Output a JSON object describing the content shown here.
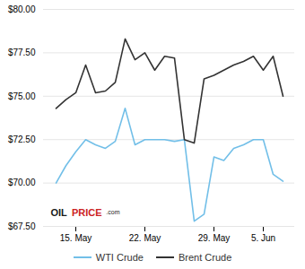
{
  "chart_data": {
    "type": "line",
    "categories": [
      null,
      null,
      "15. May",
      null,
      null,
      null,
      null,
      null,
      null,
      "22. May",
      null,
      null,
      null,
      null,
      null,
      null,
      "29. May",
      null,
      null,
      null,
      null,
      "5. Jun",
      null,
      null
    ],
    "series": [
      {
        "name": "WTI Crude",
        "color": "#72bfe8",
        "values": [
          70.0,
          71.0,
          71.8,
          72.5,
          72.2,
          72.0,
          72.4,
          74.3,
          72.2,
          72.5,
          72.5,
          72.5,
          72.4,
          72.5,
          67.8,
          68.2,
          71.5,
          71.3,
          72.0,
          72.2,
          72.5,
          72.5,
          70.5,
          70.1
        ]
      },
      {
        "name": "Brent Crude",
        "color": "#333333",
        "values": [
          74.3,
          74.8,
          75.2,
          76.8,
          75.2,
          75.3,
          75.8,
          78.3,
          77.1,
          77.5,
          76.5,
          77.3,
          77.2,
          72.5,
          72.3,
          76.0,
          76.2,
          76.5,
          76.8,
          77.0,
          77.3,
          76.5,
          77.3,
          75.0
        ]
      }
    ],
    "ylim": [
      67.5,
      80.0
    ],
    "yticks": [
      {
        "value": 67.5,
        "label": "$67.50"
      },
      {
        "value": 70.0,
        "label": "$70.00"
      },
      {
        "value": 72.5,
        "label": "$72.50"
      },
      {
        "value": 75.0,
        "label": "$75.00"
      },
      {
        "value": 77.5,
        "label": "$77.50"
      },
      {
        "value": 80.0,
        "label": "$80.00"
      }
    ],
    "grid": true,
    "legend": "bottom",
    "annotations": [
      {
        "text": "OIL",
        "color": "#1a1a1a"
      },
      {
        "text": "PRICE",
        "color": "#cc2222"
      },
      {
        "text": ".com",
        "color": "#1a1a1a"
      }
    ]
  }
}
